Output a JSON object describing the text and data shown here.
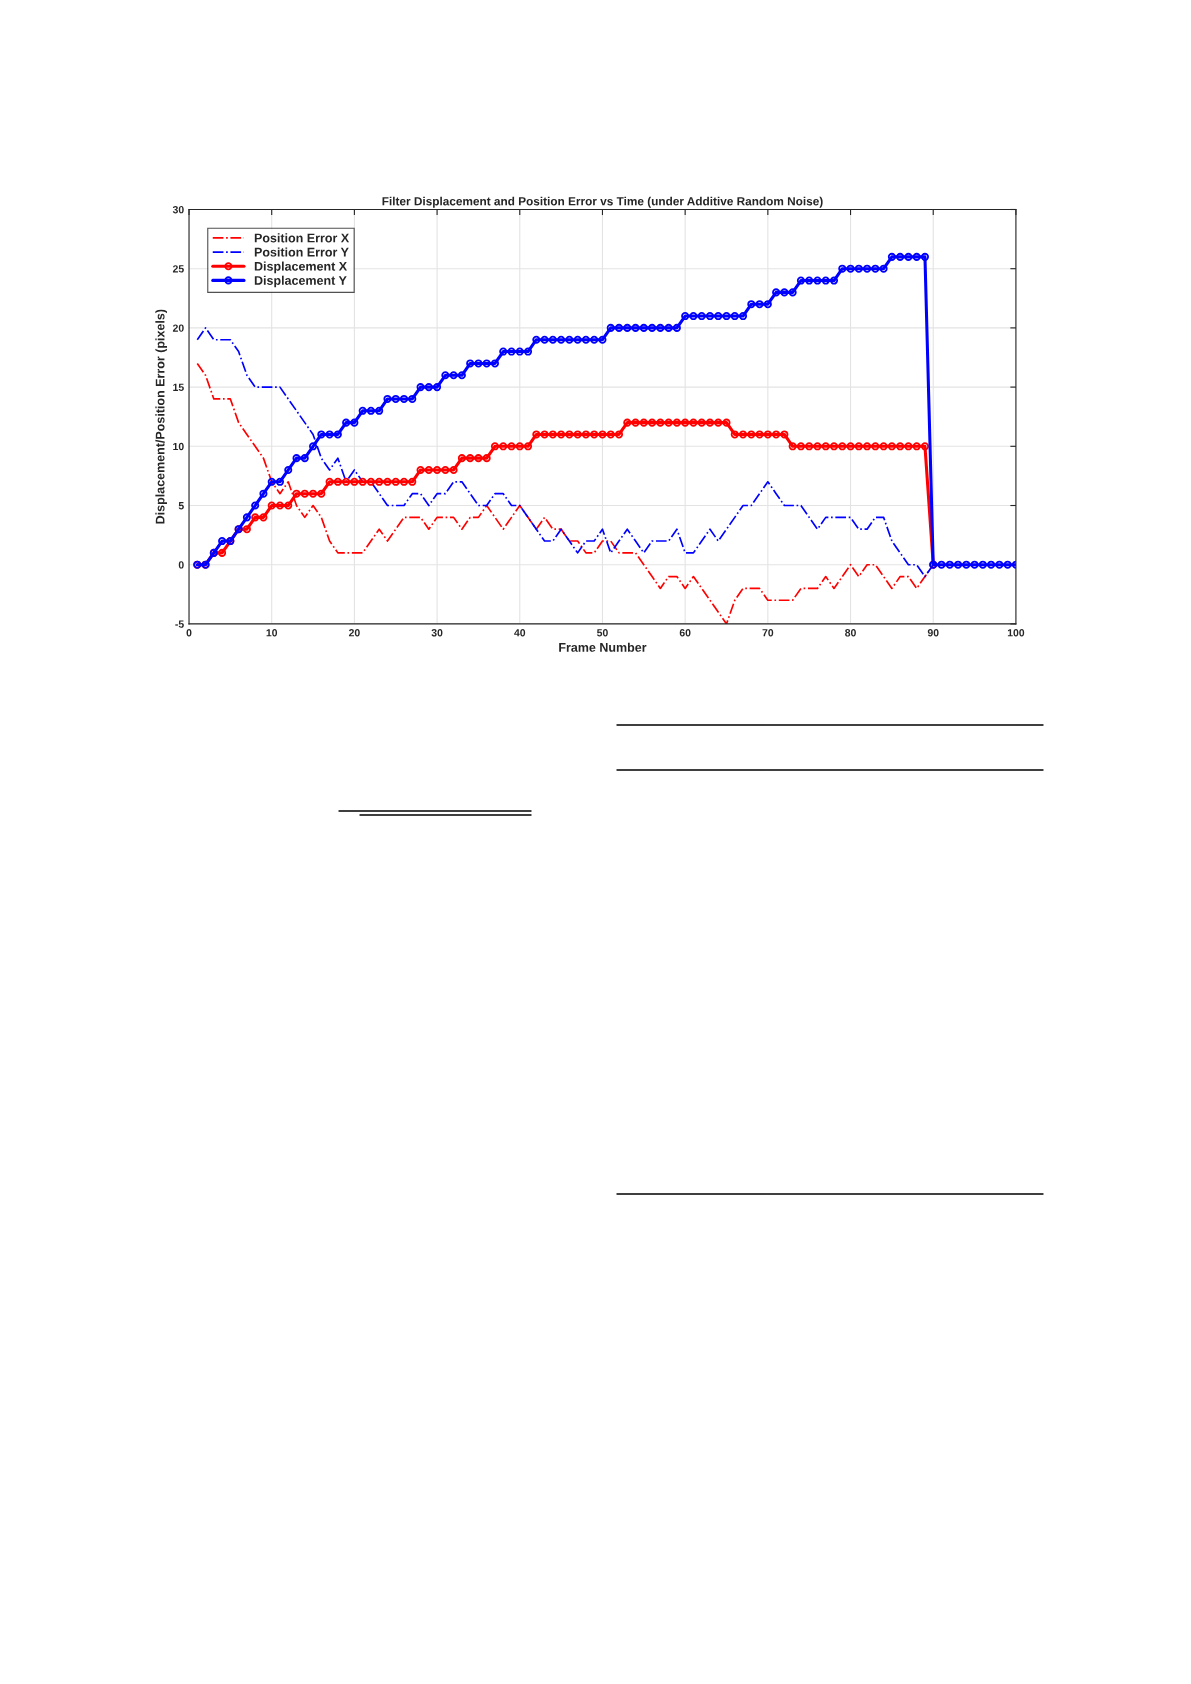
{
  "chart_data": {
    "type": "line",
    "title": "Filter Displacement and Position Error vs Time (under Additive Random Noise)",
    "xlabel": "Frame Number",
    "ylabel": "Displacement/Position Error (pixels)",
    "x": [
      1,
      2,
      3,
      4,
      5,
      6,
      7,
      8,
      9,
      10,
      11,
      12,
      13,
      14,
      15,
      16,
      17,
      18,
      19,
      20,
      21,
      22,
      23,
      24,
      25,
      26,
      27,
      28,
      29,
      30,
      31,
      32,
      33,
      34,
      35,
      36,
      37,
      38,
      39,
      40,
      41,
      42,
      43,
      44,
      45,
      46,
      47,
      48,
      49,
      50,
      51,
      52,
      53,
      54,
      55,
      56,
      57,
      58,
      59,
      60,
      61,
      62,
      63,
      64,
      65,
      66,
      67,
      68,
      69,
      70,
      71,
      72,
      73,
      74,
      75,
      76,
      77,
      78,
      79,
      80,
      81,
      82,
      83,
      84,
      85,
      86,
      87,
      88,
      89,
      90,
      91,
      92,
      93,
      94,
      95,
      96,
      97,
      98,
      99,
      100
    ],
    "series": [
      {
        "name": "Position Error X",
        "color": "#ff0000",
        "line_style": "dashed",
        "marker": "none",
        "values": [
          17,
          16,
          14,
          14,
          14,
          12,
          11,
          10,
          9,
          7,
          6,
          7,
          5,
          4,
          5,
          4,
          2,
          1,
          1,
          1,
          1,
          2,
          3,
          2,
          3,
          4,
          4,
          4,
          3,
          4,
          4,
          4,
          3,
          4,
          4,
          5,
          4,
          3,
          4,
          5,
          4,
          3,
          4,
          3,
          3,
          2,
          2,
          1,
          1,
          2,
          2,
          1,
          1,
          1,
          0,
          -1,
          -2,
          -1,
          -1,
          -2,
          -1,
          -2,
          -3,
          -4,
          -5,
          -3,
          -2,
          -2,
          -2,
          -3,
          -3,
          -3,
          -3,
          -2,
          -2,
          -2,
          -1,
          -2,
          -1,
          0,
          -1,
          0,
          0,
          -1,
          -2,
          -1,
          -1,
          -2,
          -1,
          0,
          null,
          null,
          null,
          null,
          null,
          null,
          null,
          null,
          null,
          null
        ]
      },
      {
        "name": "Position Error Y",
        "color": "#0000ff",
        "line_style": "dashed",
        "marker": "none",
        "values": [
          19,
          20,
          19,
          19,
          19,
          18,
          16,
          15,
          15,
          15,
          15,
          14,
          13,
          12,
          11,
          9,
          8,
          9,
          7,
          8,
          7,
          7,
          6,
          5,
          5,
          5,
          6,
          6,
          5,
          6,
          6,
          7,
          7,
          6,
          5,
          5,
          6,
          6,
          5,
          5,
          4,
          3,
          2,
          2,
          3,
          2,
          1,
          2,
          2,
          3,
          1,
          2,
          3,
          2,
          1,
          2,
          2,
          2,
          3,
          1,
          1,
          2,
          3,
          2,
          3,
          4,
          5,
          5,
          6,
          7,
          6,
          5,
          5,
          5,
          4,
          3,
          4,
          4,
          4,
          4,
          3,
          3,
          4,
          4,
          2,
          1,
          0,
          0,
          -1,
          0,
          null,
          null,
          null,
          null,
          null,
          null,
          null,
          null,
          null,
          null
        ]
      },
      {
        "name": "Displacement X",
        "color": "#ff0000",
        "line_style": "solid",
        "marker": "circle",
        "values": [
          0,
          0,
          1,
          1,
          2,
          3,
          3,
          4,
          4,
          5,
          5,
          5,
          6,
          6,
          6,
          6,
          7,
          7,
          7,
          7,
          7,
          7,
          7,
          7,
          7,
          7,
          7,
          8,
          8,
          8,
          8,
          8,
          9,
          9,
          9,
          9,
          10,
          10,
          10,
          10,
          10,
          11,
          11,
          11,
          11,
          11,
          11,
          11,
          11,
          11,
          11,
          11,
          12,
          12,
          12,
          12,
          12,
          12,
          12,
          12,
          12,
          12,
          12,
          12,
          12,
          11,
          11,
          11,
          11,
          11,
          11,
          11,
          10,
          10,
          10,
          10,
          10,
          10,
          10,
          10,
          10,
          10,
          10,
          10,
          10,
          10,
          10,
          10,
          10,
          0,
          null,
          null,
          null,
          null,
          null,
          null,
          null,
          null,
          null,
          null
        ]
      },
      {
        "name": "Displacement Y",
        "color": "#0000ff",
        "line_style": "solid",
        "marker": "circle",
        "values": [
          0,
          0,
          1,
          2,
          2,
          3,
          4,
          5,
          6,
          7,
          7,
          8,
          9,
          9,
          10,
          11,
          11,
          11,
          12,
          12,
          13,
          13,
          13,
          14,
          14,
          14,
          14,
          15,
          15,
          15,
          16,
          16,
          16,
          17,
          17,
          17,
          17,
          18,
          18,
          18,
          18,
          19,
          19,
          19,
          19,
          19,
          19,
          19,
          19,
          19,
          20,
          20,
          20,
          20,
          20,
          20,
          20,
          20,
          20,
          21,
          21,
          21,
          21,
          21,
          21,
          21,
          21,
          22,
          22,
          22,
          23,
          23,
          23,
          24,
          24,
          24,
          24,
          24,
          25,
          25,
          25,
          25,
          25,
          25,
          26,
          26,
          26,
          26,
          26,
          0,
          0,
          0,
          0,
          0,
          0,
          0,
          0,
          0,
          0,
          0
        ]
      }
    ],
    "xlim": [
      0,
      100
    ],
    "xticks": [
      0,
      10,
      20,
      30,
      40,
      50,
      60,
      70,
      80,
      90,
      100
    ],
    "ylim": [
      -5,
      30
    ],
    "yticks": [
      -5,
      0,
      5,
      10,
      15,
      20,
      25,
      30
    ],
    "grid": true,
    "legend": "top left"
  }
}
